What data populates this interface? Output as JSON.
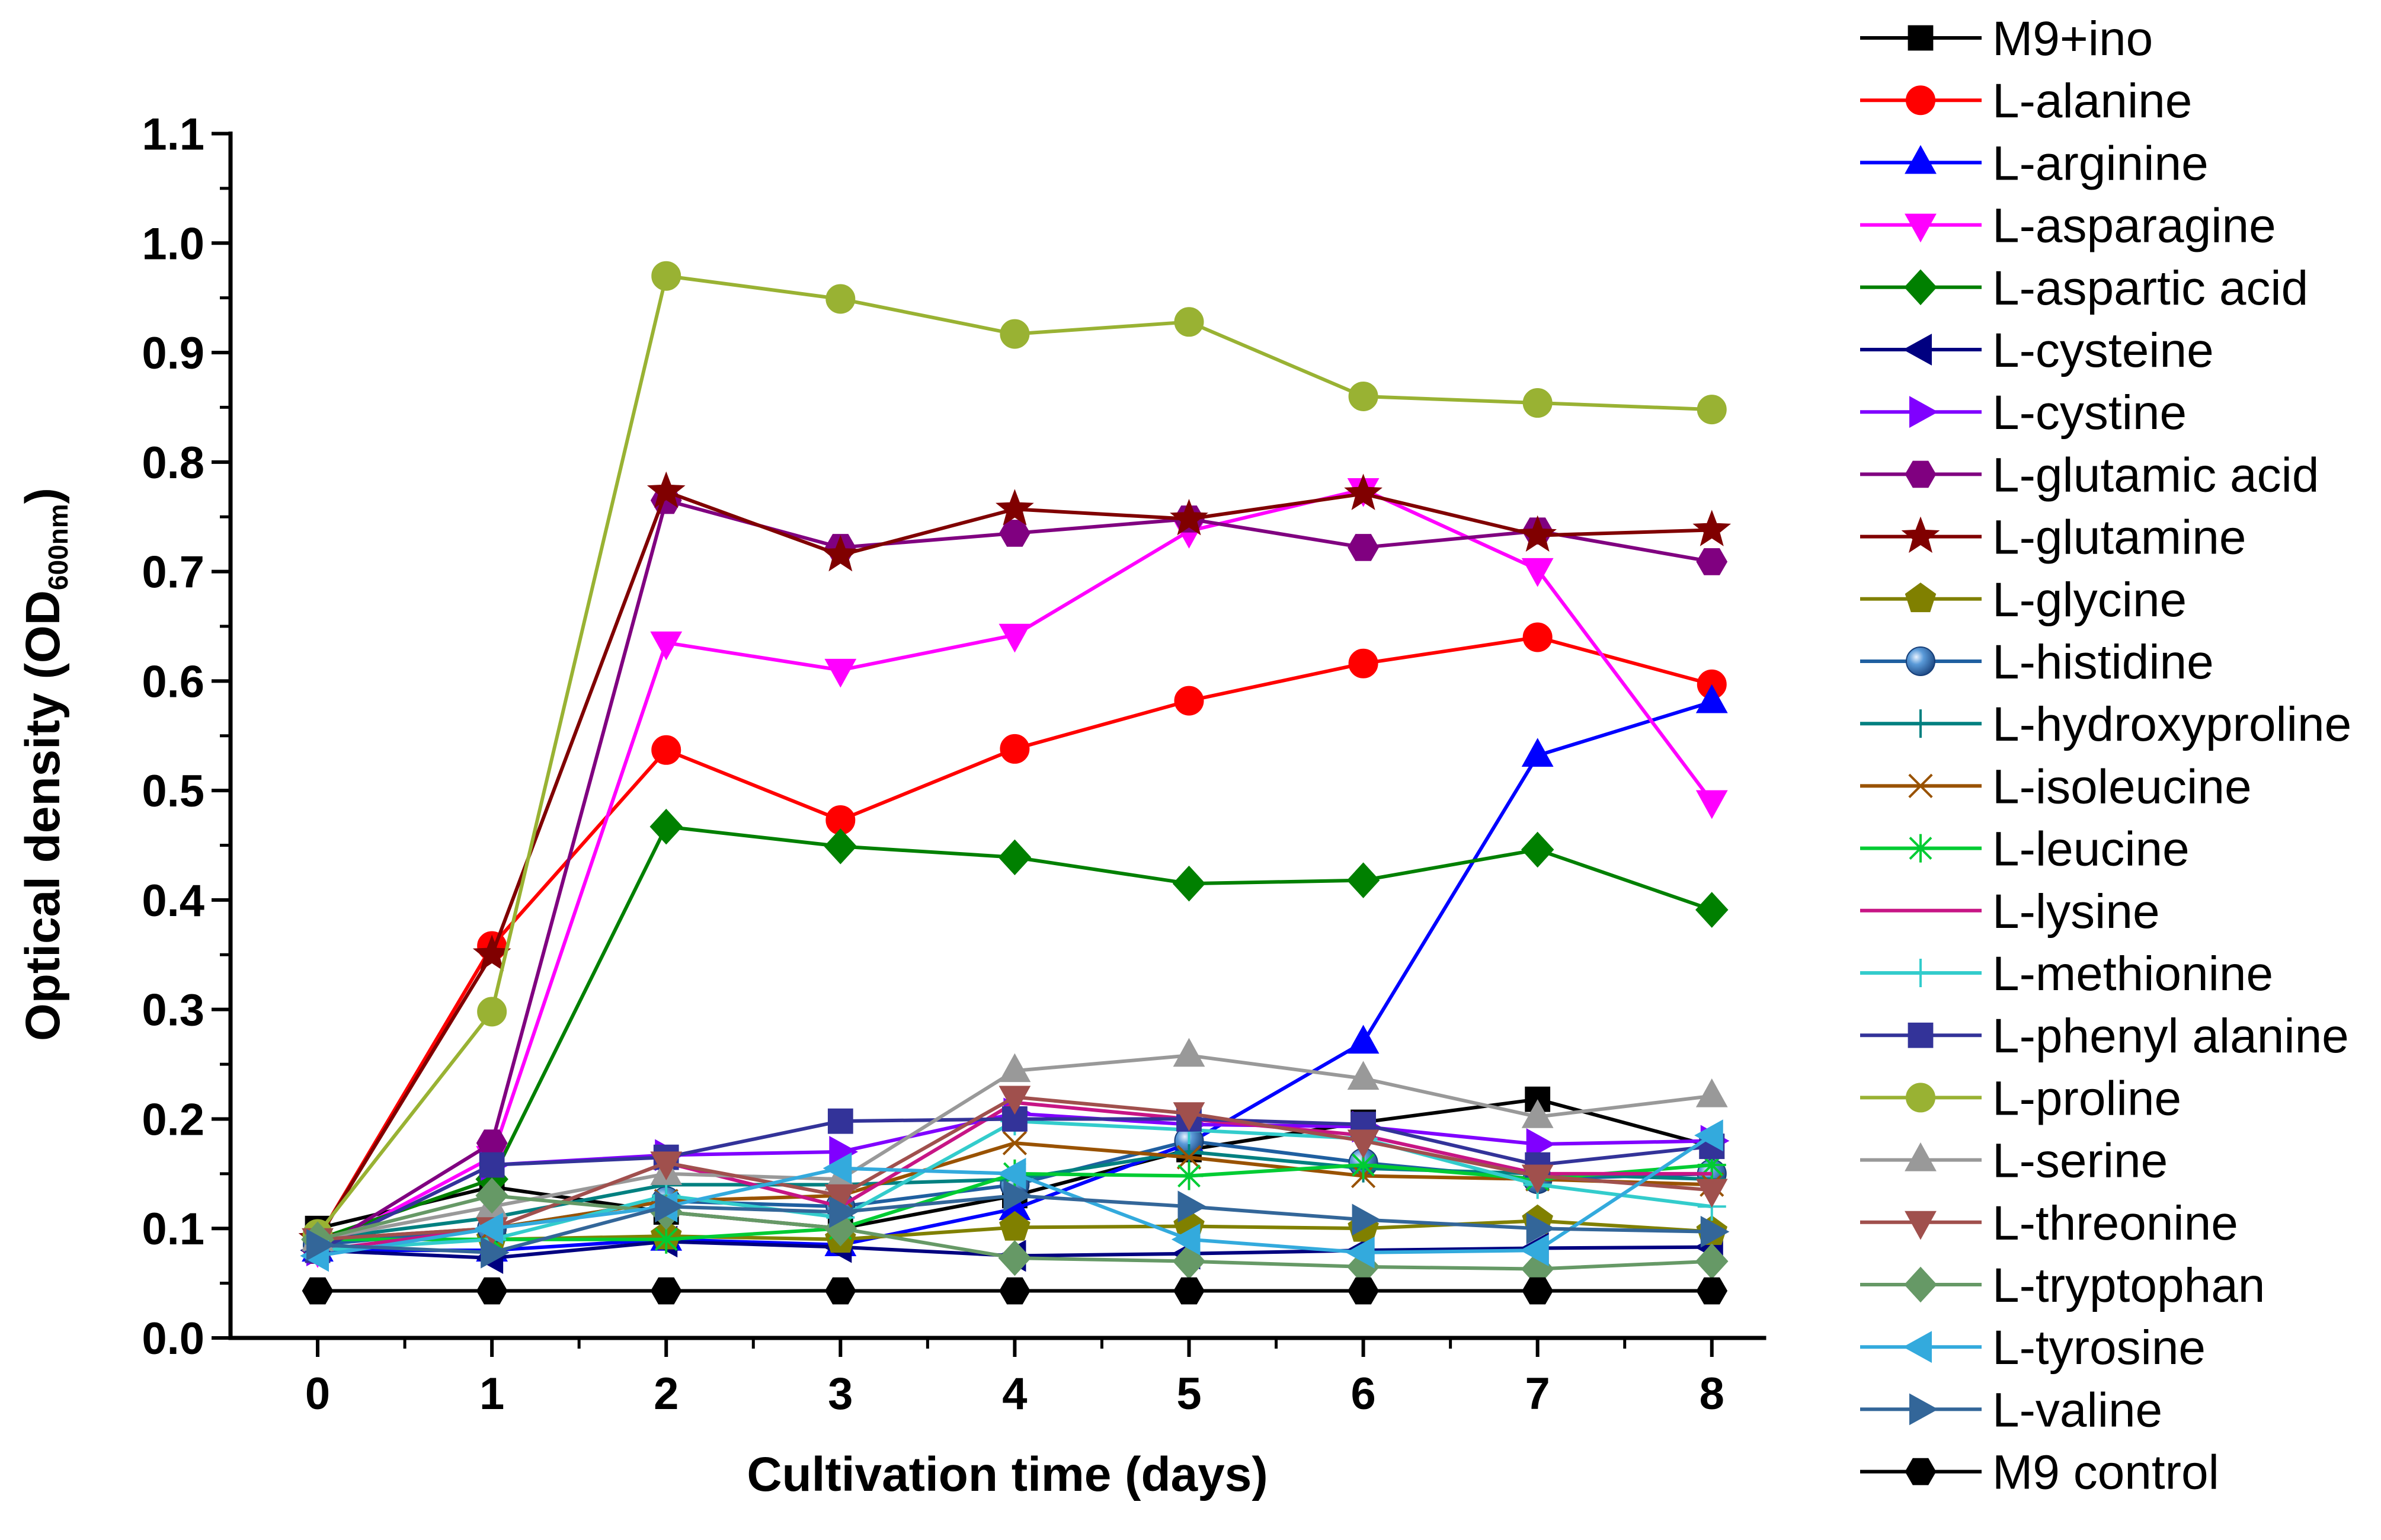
{
  "chart_data": {
    "type": "line",
    "xlabel": "Cultivation time (days)",
    "ylabel": {
      "text": "Optical density (OD",
      "subscript": "600nm",
      "suffix": ")"
    },
    "x": [
      0,
      1,
      2,
      3,
      4,
      5,
      6,
      7,
      8
    ],
    "xlim": [
      -0.5,
      8.3
    ],
    "ylim": [
      0,
      1.1
    ],
    "xticks": [
      "0",
      "1",
      "2",
      "3",
      "4",
      "5",
      "6",
      "7",
      "8"
    ],
    "yticks": [
      "0.0",
      "0.1",
      "0.2",
      "0.3",
      "0.4",
      "0.5",
      "0.6",
      "0.7",
      "0.8",
      "0.9",
      "1.0",
      "1.1"
    ],
    "grid": false,
    "legend": "right",
    "series": [
      {
        "name": "M9+ino",
        "marker": "square",
        "color": "#000000",
        "values": [
          0.1,
          0.138,
          0.115,
          0.1,
          0.13,
          0.172,
          0.197,
          0.218,
          0.175
        ]
      },
      {
        "name": "L-alanine",
        "marker": "circle",
        "color": "#FF0000",
        "values": [
          0.09,
          0.358,
          0.537,
          0.473,
          0.538,
          0.582,
          0.616,
          0.64,
          0.597
        ]
      },
      {
        "name": "L-arginine",
        "marker": "triangle-up",
        "color": "#0000FF",
        "values": [
          0.08,
          0.08,
          0.09,
          0.085,
          0.118,
          0.178,
          0.27,
          0.532,
          0.581
        ]
      },
      {
        "name": "L-asparagine",
        "marker": "triangle-down",
        "color": "#FF00FF",
        "values": [
          0.08,
          0.165,
          0.635,
          0.61,
          0.642,
          0.737,
          0.775,
          0.702,
          0.49
        ]
      },
      {
        "name": "L-aspartic acid",
        "marker": "diamond",
        "color": "#008000",
        "values": [
          0.09,
          0.145,
          0.467,
          0.449,
          0.439,
          0.415,
          0.418,
          0.446,
          0.391
        ]
      },
      {
        "name": "L-cysteine",
        "marker": "triangle-left",
        "color": "#000080",
        "values": [
          0.08,
          0.073,
          0.088,
          0.083,
          0.075,
          0.077,
          0.08,
          0.082,
          0.083
        ]
      },
      {
        "name": "L-cystine",
        "marker": "triangle-right",
        "color": "#8000FF",
        "values": [
          0.08,
          0.158,
          0.167,
          0.17,
          0.205,
          0.195,
          0.193,
          0.177,
          0.18
        ]
      },
      {
        "name": "L-glutamic acid",
        "marker": "hexagon",
        "color": "#800080",
        "values": [
          0.08,
          0.178,
          0.765,
          0.722,
          0.735,
          0.748,
          0.722,
          0.737,
          0.709
        ]
      },
      {
        "name": "L-glutamine",
        "marker": "star",
        "color": "#800000",
        "values": [
          0.09,
          0.35,
          0.773,
          0.715,
          0.757,
          0.748,
          0.771,
          0.733,
          0.738
        ]
      },
      {
        "name": "L-glycine",
        "marker": "pentagon",
        "color": "#808000",
        "values": [
          0.09,
          0.09,
          0.093,
          0.09,
          0.101,
          0.102,
          0.1,
          0.107,
          0.097
        ]
      },
      {
        "name": "L-histidine",
        "marker": "sphere",
        "color": "#1F5FA0",
        "values": [
          0.085,
          0.1,
          0.125,
          0.12,
          0.14,
          0.18,
          0.16,
          0.145,
          0.15
        ]
      },
      {
        "name": "L-hydroxyproline",
        "marker": "plus",
        "color": "#008080",
        "values": [
          0.09,
          0.11,
          0.14,
          0.14,
          0.145,
          0.17,
          0.155,
          0.15,
          0.145
        ]
      },
      {
        "name": "L-isoleucine",
        "marker": "cross",
        "color": "#995200",
        "values": [
          0.09,
          0.1,
          0.125,
          0.13,
          0.178,
          0.165,
          0.148,
          0.145,
          0.14
        ]
      },
      {
        "name": "L-leucine",
        "marker": "asterisk",
        "color": "#00CC33",
        "values": [
          0.09,
          0.09,
          0.09,
          0.1,
          0.15,
          0.148,
          0.158,
          0.145,
          0.158
        ]
      },
      {
        "name": "L-lysine",
        "marker": "none",
        "color": "#C71585",
        "values": [
          0.08,
          0.1,
          0.16,
          0.12,
          0.215,
          0.2,
          0.185,
          0.15,
          0.15
        ]
      },
      {
        "name": "L-methionine",
        "marker": "plus",
        "color": "#33CCCC",
        "values": [
          0.08,
          0.09,
          0.13,
          0.11,
          0.198,
          0.19,
          0.182,
          0.14,
          0.12
        ]
      },
      {
        "name": "L-phenyl alanine",
        "marker": "square",
        "color": "#333399",
        "values": [
          0.08,
          0.158,
          0.165,
          0.198,
          0.2,
          0.2,
          0.195,
          0.158,
          0.175
        ]
      },
      {
        "name": "L-proline",
        "marker": "circle",
        "color": "#99B233",
        "values": [
          0.095,
          0.298,
          0.97,
          0.949,
          0.917,
          0.928,
          0.86,
          0.854,
          0.848
        ]
      },
      {
        "name": "L-serine",
        "marker": "triangle-up",
        "color": "#999999",
        "values": [
          0.09,
          0.12,
          0.15,
          0.145,
          0.244,
          0.258,
          0.237,
          0.202,
          0.221
        ]
      },
      {
        "name": "L-threonine",
        "marker": "triangle-down",
        "color": "#A0504D",
        "values": [
          0.09,
          0.1,
          0.16,
          0.13,
          0.22,
          0.205,
          0.18,
          0.148,
          0.135
        ]
      },
      {
        "name": "L-tryptophan",
        "marker": "diamond",
        "color": "#669966",
        "values": [
          0.09,
          0.13,
          0.115,
          0.1,
          0.073,
          0.07,
          0.065,
          0.063,
          0.07
        ]
      },
      {
        "name": "L-tyrosine",
        "marker": "triangle-left",
        "color": "#33AADD",
        "values": [
          0.075,
          0.1,
          0.12,
          0.155,
          0.15,
          0.09,
          0.078,
          0.08,
          0.185
        ]
      },
      {
        "name": "L-valine",
        "marker": "triangle-right",
        "color": "#336699",
        "values": [
          0.085,
          0.078,
          0.12,
          0.115,
          0.13,
          0.12,
          0.108,
          0.1,
          0.097
        ]
      },
      {
        "name": "M9 control",
        "marker": "hexagon",
        "color": "#000000",
        "values": [
          0.043,
          0.043,
          0.043,
          0.043,
          0.043,
          0.043,
          0.043,
          0.043,
          0.043
        ]
      }
    ]
  }
}
